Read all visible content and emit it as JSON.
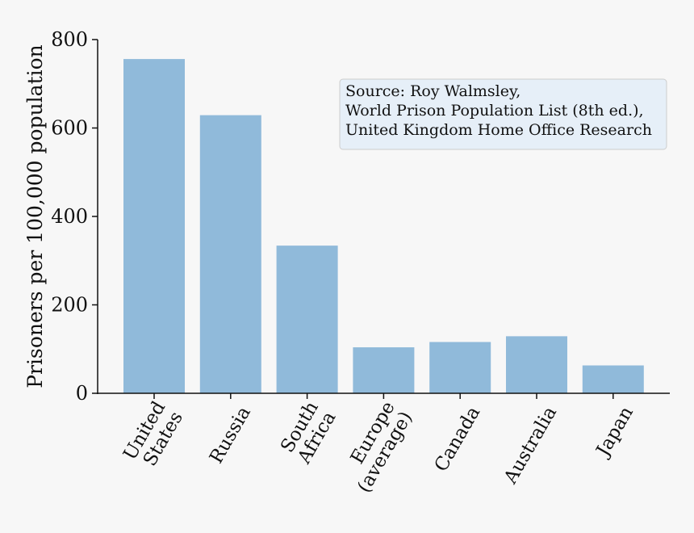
{
  "chart_data": {
    "type": "bar",
    "categories": [
      [
        "United",
        "States"
      ],
      [
        "Russia"
      ],
      [
        "South",
        "Africa"
      ],
      [
        "Europe",
        "(average)"
      ],
      [
        "Canada"
      ],
      [
        "Australia"
      ],
      [
        "Japan"
      ]
    ],
    "values": [
      756,
      629,
      334,
      104,
      116,
      129,
      63
    ],
    "ylabel": "Prisoners per 100,000 population",
    "ylim": [
      0,
      800
    ],
    "yticks": [
      0,
      200,
      400,
      600,
      800
    ],
    "bar_color": "#90bada",
    "grid": false,
    "source_note": [
      "Source: Roy Walmsley,",
      "World Prison Population List (8th ed.),",
      "United Kingdom Home Office Research"
    ],
    "source_note_placement": "top-right",
    "source_note_background": "#e6eff8",
    "source_note_border": "#cccccc"
  }
}
